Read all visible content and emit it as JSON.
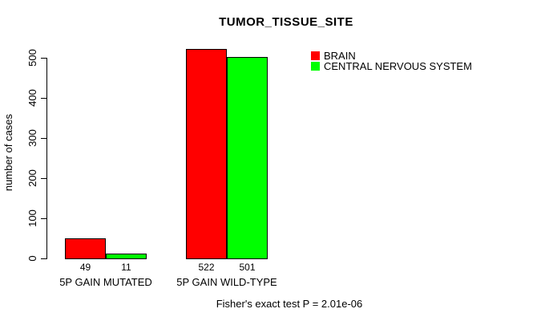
{
  "chart_data": {
    "type": "bar",
    "title": "TUMOR_TISSUE_SITE",
    "xlabel": "",
    "ylabel": "number of cases",
    "categories": [
      "5P GAIN MUTATED",
      "5P GAIN WILD-TYPE"
    ],
    "series": [
      {
        "name": "BRAIN",
        "color": "#FF0000",
        "values": [
          49,
          522
        ]
      },
      {
        "name": "CENTRAL NERVOUS SYSTEM",
        "color": "#00FF00",
        "values": [
          11,
          501
        ]
      }
    ],
    "bar_value_labels": [
      [
        "49",
        "522"
      ],
      [
        "11",
        "501"
      ]
    ],
    "yticks": [
      0,
      100,
      200,
      300,
      400,
      500
    ],
    "ylim": [
      0,
      522
    ],
    "grid": false,
    "legend_position": "top-right",
    "annotation": "Fisher's exact test P = 2.01e-06",
    "colors": {
      "background": "#FFFFFF",
      "axis": "#000000",
      "bar_border": "#000000",
      "text": "#000000"
    }
  }
}
